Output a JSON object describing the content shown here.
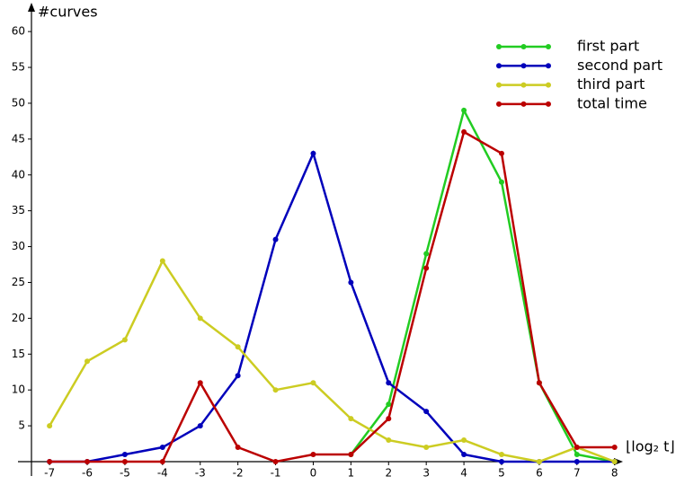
{
  "chart_data": {
    "type": "line",
    "y_label": "#curves",
    "x_label": "⌊log₂ t⌋",
    "x": [
      -7,
      -6,
      -5,
      -4,
      -3,
      -2,
      -1,
      0,
      1,
      2,
      3,
      4,
      5,
      6,
      7,
      8
    ],
    "series": [
      {
        "name": "first part",
        "color": "#22cc22",
        "values": [
          null,
          null,
          null,
          null,
          null,
          null,
          null,
          null,
          1,
          8,
          29,
          49,
          39,
          11,
          1,
          0
        ]
      },
      {
        "name": "second part",
        "color": "#0000bb",
        "values": [
          0,
          0,
          1,
          2,
          5,
          12,
          31,
          43,
          25,
          11,
          7,
          1,
          0,
          0,
          0,
          0
        ]
      },
      {
        "name": "third part",
        "color": "#cccc22",
        "values": [
          5,
          14,
          17,
          28,
          20,
          16,
          10,
          11,
          6,
          3,
          2,
          3,
          1,
          0,
          2,
          0
        ]
      },
      {
        "name": "total time",
        "color": "#bb0000",
        "values": [
          0,
          0,
          0,
          0,
          11,
          2,
          0,
          1,
          1,
          6,
          27,
          46,
          43,
          11,
          2,
          2
        ]
      }
    ],
    "xlim": [
      -7.48,
      8.15
    ],
    "ylim": [
      0,
      63.4
    ],
    "xticks": [
      -7,
      -6,
      -5,
      -4,
      -3,
      -2,
      -1,
      0,
      1,
      2,
      3,
      4,
      5,
      6,
      7,
      8
    ],
    "yticks": [
      5,
      10,
      15,
      20,
      25,
      30,
      35,
      40,
      45,
      50,
      55,
      60
    ],
    "legend": "upper right"
  }
}
